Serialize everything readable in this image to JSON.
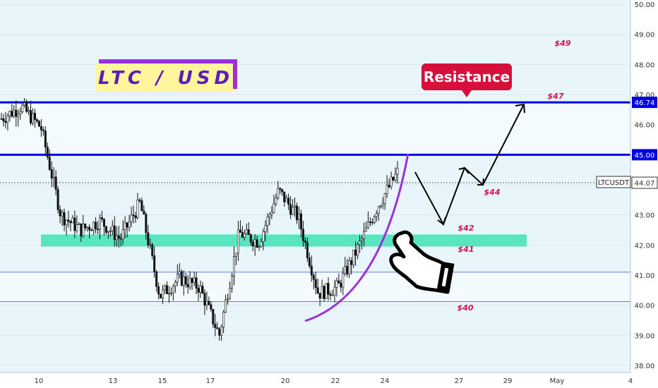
{
  "chart_data": {
    "type": "candlestick",
    "symbol_title": "LTC / USD",
    "ticker": "LTCUSDT",
    "last_price": "44.07",
    "y_range": [
      38,
      50
    ],
    "y_ticks": [
      "50.00",
      "49.00",
      "48.00",
      "47.00",
      "46.74",
      "46.00",
      "45.00",
      "44.07",
      "43.00",
      "42.00",
      "41.00",
      "40.00",
      "39.00",
      "38.00"
    ],
    "x_ticks": [
      "10",
      "13",
      "15",
      "17",
      "20",
      "22",
      "24",
      "27",
      "29",
      "May",
      "4"
    ],
    "highlighted_levels": [
      "46.74",
      "45.00"
    ],
    "levels": {
      "resistance_upper": 46.74,
      "resistance_lower": 45.0,
      "support_band": [
        41.95,
        42.35
      ],
      "lower_line_1": 41.1,
      "lower_line_2": 40.12
    },
    "annotations": {
      "resistance_label": "Resistance",
      "price_labels": [
        "$49",
        "$47",
        "$44",
        "$42",
        "$41",
        "$40"
      ]
    },
    "key_prices": [
      {
        "x": 0,
        "y": 46.2
      },
      {
        "x": 1,
        "y": 46.6
      },
      {
        "x": 2,
        "y": 45.9
      },
      {
        "x": 3,
        "y": 43.0
      },
      {
        "x": 4,
        "y": 42.5
      },
      {
        "x": 5,
        "y": 42.8
      },
      {
        "x": 6,
        "y": 42.2
      },
      {
        "x": 7,
        "y": 43.4
      },
      {
        "x": 8,
        "y": 40.3
      },
      {
        "x": 9,
        "y": 40.9
      },
      {
        "x": 10,
        "y": 40.6
      },
      {
        "x": 11,
        "y": 39.0
      },
      {
        "x": 12,
        "y": 42.4
      },
      {
        "x": 13,
        "y": 42.1
      },
      {
        "x": 14,
        "y": 43.8
      },
      {
        "x": 15,
        "y": 42.9
      },
      {
        "x": 16,
        "y": 40.4
      },
      {
        "x": 17,
        "y": 40.6
      },
      {
        "x": 18,
        "y": 41.9
      },
      {
        "x": 19,
        "y": 43.3
      },
      {
        "x": 20,
        "y": 44.4
      }
    ],
    "colors": {
      "resistance_line": "#0000e6",
      "support_band": "#3ee3b5",
      "curve": "#9b30e0",
      "price_label": "#d6105a",
      "badge": "#d6103b",
      "title_bg": "#fff59d",
      "title_text": "#5a1fb8",
      "title_border": "#9b30e0"
    }
  }
}
